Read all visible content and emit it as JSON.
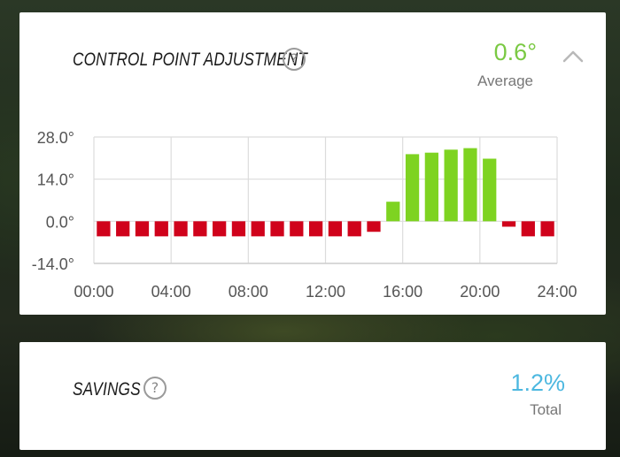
{
  "control_point": {
    "title": "CONTROL POINT ADJUSTMENT",
    "help_icon": "question-circle-icon",
    "value": "0.6°",
    "value_color": "#7ac943",
    "label": "Average",
    "collapse_icon": "chevron-up-icon"
  },
  "savings": {
    "title": "SAVINGS",
    "help_icon": "question-circle-icon",
    "value": "1.2%",
    "value_color": "#4db8e0",
    "label": "Total"
  },
  "chart_data": {
    "type": "bar",
    "x": [
      0,
      1,
      2,
      3,
      4,
      5,
      6,
      7,
      8,
      9,
      10,
      11,
      12,
      13,
      14,
      15,
      16,
      17,
      18,
      19,
      20,
      21,
      22,
      23
    ],
    "values": [
      -5.0,
      -5.0,
      -5.0,
      -5.0,
      -5.0,
      -5.0,
      -5.0,
      -5.0,
      -5.0,
      -5.0,
      -5.0,
      -5.0,
      -5.0,
      -5.0,
      -3.5,
      6.5,
      22.3,
      22.8,
      23.8,
      24.3,
      20.8,
      -1.8,
      -5.0,
      -5.0
    ],
    "positive_color": "#7ed321",
    "negative_color": "#d0021b",
    "x_tick_labels": [
      "00:00",
      "04:00",
      "08:00",
      "12:00",
      "16:00",
      "20:00",
      "24:00"
    ],
    "x_ticks": [
      0,
      4,
      8,
      12,
      16,
      20,
      24
    ],
    "y_tick_labels": [
      "28.0°",
      "14.0°",
      "0.0°",
      "-14.0°"
    ],
    "y_ticks": [
      28,
      14,
      0,
      -14
    ],
    "xlim": [
      0,
      24
    ],
    "ylim": [
      -14,
      28
    ],
    "grid": true,
    "xlabel": "",
    "ylabel": "",
    "title": ""
  }
}
